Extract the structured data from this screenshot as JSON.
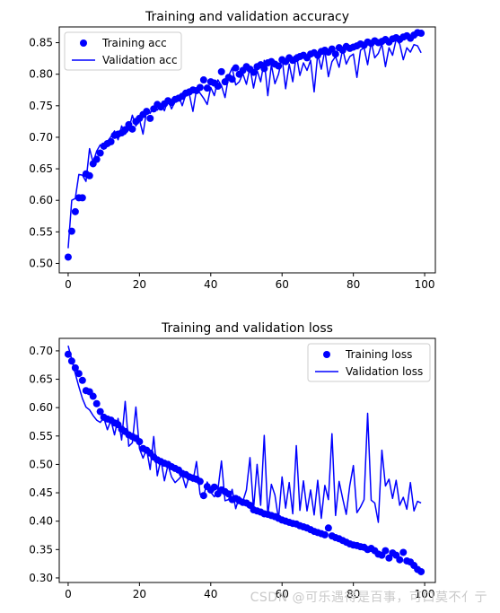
{
  "watermark": "CSDN @可乐遇得是百事，可口莫不亻亍",
  "chart_data": [
    {
      "type": "scatter",
      "title": "Training and validation accuracy",
      "xlabel": "",
      "ylabel": "",
      "xlim": [
        -2.5,
        103
      ],
      "ylim": [
        0.485,
        0.875
      ],
      "xticks": [
        0,
        20,
        40,
        60,
        80,
        100
      ],
      "yticks": [
        0.5,
        0.55,
        0.6,
        0.65,
        0.7,
        0.75,
        0.8,
        0.85
      ],
      "ytick_labels": [
        "0.50",
        "0.55",
        "0.60",
        "0.65",
        "0.70",
        "0.75",
        "0.80",
        "0.85"
      ],
      "grid": false,
      "legend": "top-left",
      "series": [
        {
          "name": "Training acc",
          "style": "dots",
          "color": "#0000ff",
          "values": [
            0.51,
            0.551,
            0.582,
            0.604,
            0.604,
            0.642,
            0.639,
            0.658,
            0.665,
            0.675,
            0.686,
            0.69,
            0.693,
            0.703,
            0.705,
            0.707,
            0.712,
            0.72,
            0.713,
            0.725,
            0.73,
            0.736,
            0.741,
            0.73,
            0.745,
            0.752,
            0.748,
            0.753,
            0.758,
            0.755,
            0.76,
            0.762,
            0.765,
            0.77,
            0.772,
            0.775,
            0.774,
            0.779,
            0.791,
            0.778,
            0.788,
            0.786,
            0.781,
            0.804,
            0.788,
            0.795,
            0.792,
            0.81,
            0.8,
            0.806,
            0.812,
            0.808,
            0.803,
            0.812,
            0.815,
            0.809,
            0.818,
            0.82,
            0.816,
            0.813,
            0.823,
            0.82,
            0.826,
            0.822,
            0.825,
            0.828,
            0.83,
            0.826,
            0.832,
            0.834,
            0.83,
            0.836,
            0.838,
            0.835,
            0.84,
            0.832,
            0.842,
            0.838,
            0.844,
            0.841,
            0.843,
            0.845,
            0.848,
            0.846,
            0.851,
            0.849,
            0.853,
            0.85,
            0.852,
            0.855,
            0.851,
            0.856,
            0.858,
            0.855,
            0.859,
            0.861,
            0.857,
            0.862,
            0.866,
            0.865
          ]
        },
        {
          "name": "Validation acc",
          "style": "line",
          "color": "#0000ff",
          "values": [
            0.524,
            0.6,
            0.603,
            0.641,
            0.64,
            0.63,
            0.682,
            0.66,
            0.678,
            0.688,
            0.681,
            0.693,
            0.701,
            0.71,
            0.696,
            0.718,
            0.705,
            0.712,
            0.735,
            0.718,
            0.728,
            0.705,
            0.742,
            0.738,
            0.749,
            0.743,
            0.753,
            0.742,
            0.76,
            0.745,
            0.757,
            0.766,
            0.75,
            0.768,
            0.768,
            0.741,
            0.776,
            0.77,
            0.762,
            0.752,
            0.779,
            0.766,
            0.791,
            0.782,
            0.763,
            0.797,
            0.81,
            0.783,
            0.788,
            0.801,
            0.784,
            0.811,
            0.778,
            0.806,
            0.788,
            0.822,
            0.766,
            0.815,
            0.785,
            0.8,
            0.826,
            0.777,
            0.816,
            0.788,
            0.831,
            0.798,
            0.818,
            0.806,
            0.822,
            0.772,
            0.832,
            0.808,
            0.838,
            0.796,
            0.82,
            0.828,
            0.811,
            0.84,
            0.816,
            0.828,
            0.832,
            0.795,
            0.838,
            0.842,
            0.815,
            0.851,
            0.826,
            0.833,
            0.848,
            0.812,
            0.842,
            0.83,
            0.855,
            0.848,
            0.823,
            0.842,
            0.835,
            0.847,
            0.845,
            0.834
          ]
        }
      ]
    },
    {
      "type": "scatter",
      "title": "Training and validation loss",
      "xlabel": "",
      "ylabel": "",
      "xlim": [
        -2.5,
        103
      ],
      "ylim": [
        0.292,
        0.722
      ],
      "xticks": [
        0,
        20,
        40,
        60,
        80,
        100
      ],
      "yticks": [
        0.3,
        0.35,
        0.4,
        0.45,
        0.5,
        0.55,
        0.6,
        0.65,
        0.7
      ],
      "ytick_labels": [
        "0.30",
        "0.35",
        "0.40",
        "0.45",
        "0.50",
        "0.55",
        "0.60",
        "0.65",
        "0.70"
      ],
      "grid": false,
      "legend": "top-right",
      "series": [
        {
          "name": "Training loss",
          "style": "dots",
          "color": "#0000ff",
          "values": [
            0.694,
            0.682,
            0.67,
            0.66,
            0.648,
            0.63,
            0.628,
            0.62,
            0.607,
            0.593,
            0.583,
            0.58,
            0.578,
            0.573,
            0.57,
            0.562,
            0.558,
            0.552,
            0.549,
            0.546,
            0.54,
            0.528,
            0.525,
            0.52,
            0.513,
            0.508,
            0.505,
            0.502,
            0.5,
            0.496,
            0.493,
            0.49,
            0.484,
            0.482,
            0.478,
            0.476,
            0.474,
            0.47,
            0.445,
            0.461,
            0.455,
            0.46,
            0.448,
            0.455,
            0.452,
            0.448,
            0.438,
            0.44,
            0.436,
            0.433,
            0.432,
            0.428,
            0.42,
            0.418,
            0.416,
            0.413,
            0.412,
            0.41,
            0.408,
            0.405,
            0.402,
            0.4,
            0.398,
            0.396,
            0.395,
            0.392,
            0.39,
            0.388,
            0.385,
            0.382,
            0.38,
            0.378,
            0.376,
            0.388,
            0.374,
            0.371,
            0.369,
            0.366,
            0.363,
            0.36,
            0.358,
            0.357,
            0.355,
            0.354,
            0.35,
            0.352,
            0.348,
            0.342,
            0.34,
            0.348,
            0.335,
            0.344,
            0.34,
            0.332,
            0.345,
            0.33,
            0.328,
            0.322,
            0.315,
            0.311
          ]
        },
        {
          "name": "Validation loss",
          "style": "line",
          "color": "#0000ff",
          "values": [
            0.709,
            0.685,
            0.66,
            0.637,
            0.616,
            0.601,
            0.596,
            0.586,
            0.578,
            0.574,
            0.582,
            0.561,
            0.578,
            0.552,
            0.581,
            0.543,
            0.611,
            0.532,
            0.538,
            0.601,
            0.528,
            0.511,
            0.527,
            0.491,
            0.549,
            0.48,
            0.509,
            0.471,
            0.499,
            0.478,
            0.468,
            0.474,
            0.481,
            0.459,
            0.481,
            0.47,
            0.505,
            0.447,
            0.444,
            0.469,
            0.451,
            0.443,
            0.455,
            0.506,
            0.436,
            0.438,
            0.456,
            0.422,
            0.443,
            0.435,
            0.455,
            0.512,
            0.421,
            0.5,
            0.428,
            0.551,
            0.41,
            0.465,
            0.446,
            0.403,
            0.478,
            0.423,
            0.468,
            0.413,
            0.533,
            0.419,
            0.471,
            0.418,
            0.455,
            0.411,
            0.472,
            0.405,
            0.463,
            0.438,
            0.554,
            0.41,
            0.47,
            0.44,
            0.412,
            0.463,
            0.498,
            0.415,
            0.425,
            0.438,
            0.59,
            0.437,
            0.432,
            0.398,
            0.525,
            0.462,
            0.474,
            0.44,
            0.472,
            0.428,
            0.442,
            0.421,
            0.468,
            0.418,
            0.435,
            0.432
          ]
        }
      ]
    }
  ]
}
